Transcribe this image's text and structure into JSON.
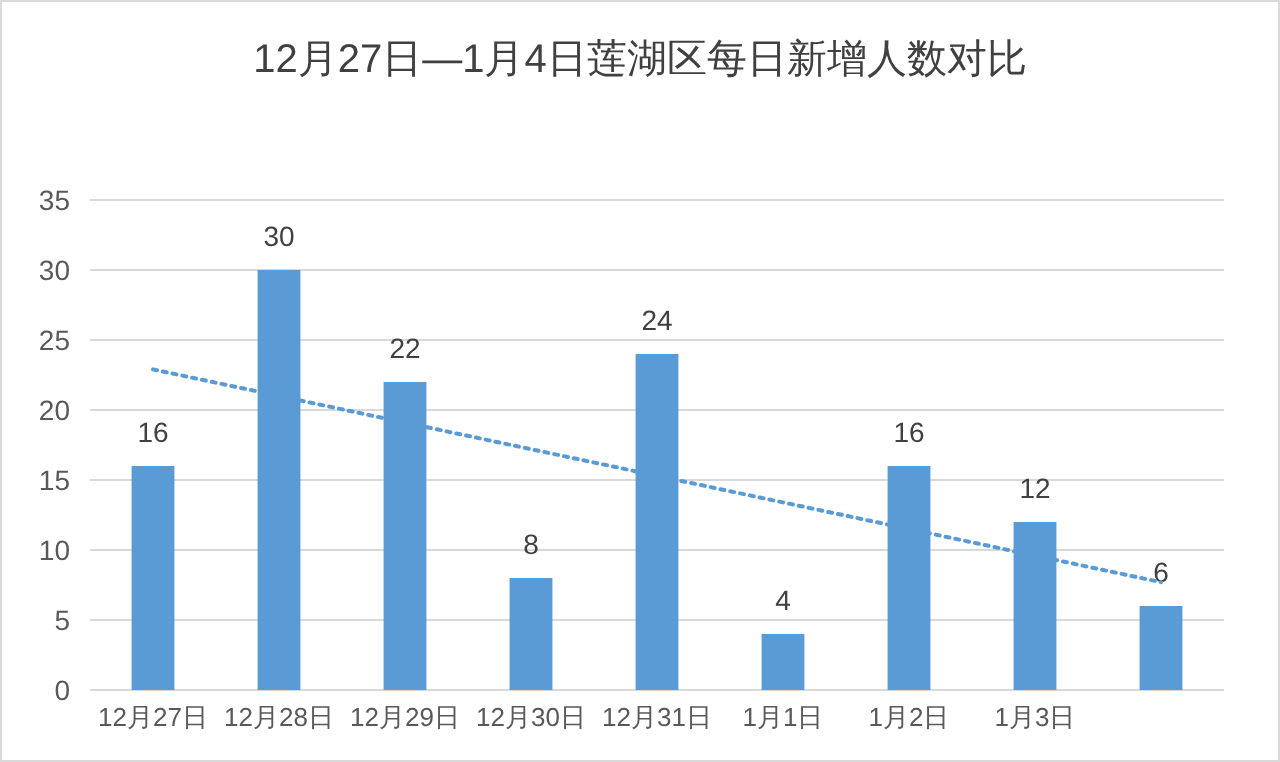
{
  "chart_data": {
    "type": "bar",
    "title": "12月27日—1月4日莲湖区每日新增人数对比",
    "categories": [
      "12月27日",
      "12月28日",
      "12月29日",
      "12月30日",
      "12月31日",
      "1月1日",
      "1月2日",
      "1月3日",
      null
    ],
    "series": [
      {
        "color": "#5b9bd5",
        "values": [
          16,
          30,
          22,
          8,
          24,
          4,
          16,
          12,
          6
        ],
        "value_labels": [
          "16",
          "30",
          "22",
          "8",
          "24",
          "4",
          "16",
          "12",
          "6"
        ]
      },
      {
        "type": "line",
        "color": "#5b9bd5",
        "line_style": "dotted",
        "values": [
          22.9,
          21.0,
          19.1,
          17.2,
          15.3,
          13.4,
          11.5,
          9.6,
          7.7
        ]
      }
    ],
    "ylim": [
      0,
      35
    ],
    "yticks": [
      0,
      5,
      10,
      15,
      20,
      25,
      30,
      35
    ],
    "grid": "y"
  }
}
